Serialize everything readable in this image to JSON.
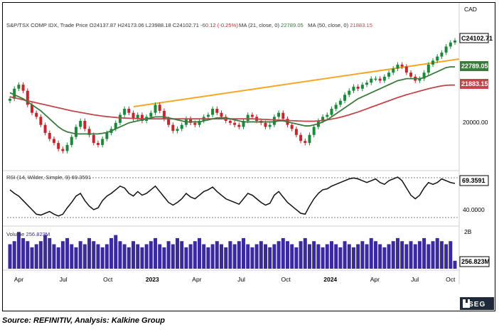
{
  "header": {
    "symbol": "S&P/TSX COMP IDX, Trade Price",
    "open": "O24137.87",
    "high": "H24173.06",
    "low": "L23988.18",
    "close": "C24102.71",
    "change": "-60.12 (-0.25%)",
    "ma21": "MA (21, close, 0)",
    "ma21_value": "22789.05",
    "ma50": "MA (50, close, 0)",
    "ma50_value": "21883.15",
    "currency": "CAD"
  },
  "rsi": {
    "label": "RSI (14, Wilder, Simple, 9)",
    "value": "69.3591",
    "axis_tick": "40.0000"
  },
  "volume": {
    "label": "Volume",
    "value_label": "256.823M",
    "axis_tick": "2B"
  },
  "footer": {
    "source": "Source: REFINITIV, Analysis: Kalkine Group",
    "brand": "LSEG"
  },
  "colors": {
    "up_candle": "#1a8a3a",
    "down_candle": "#c0282e",
    "ma21": "#3a7a3a",
    "ma50": "#c0474a",
    "trendline": "#f5a623",
    "volume": "#3a2a9e",
    "rsi_line": "#111111",
    "brand_bg": "#1e2a3a"
  },
  "chart_data": {
    "type": "candlestick",
    "title": "S&P/TSX COMP IDX, Trade Price",
    "x_tick_labels": [
      "Apr",
      "Jul",
      "Oct",
      "2023",
      "Apr",
      "Jul",
      "Oct",
      "2024",
      "Apr",
      "Jul",
      "Oct"
    ],
    "y_tick_labels": [
      "20000.00"
    ],
    "last_values": {
      "close": 24102.71,
      "ma21": 22789.05,
      "ma50": 21883.15
    },
    "price_series": {
      "name": "Close",
      "values": [
        21200,
        21700,
        21900,
        21600,
        20900,
        20500,
        20300,
        19900,
        19500,
        19200,
        19000,
        18700,
        18600,
        18900,
        19300,
        19800,
        20100,
        19700,
        19400,
        19000,
        18900,
        19200,
        19500,
        19700,
        20000,
        20400,
        20700,
        20500,
        20200,
        20400,
        20100,
        20300,
        20500,
        20900,
        20600,
        20200,
        19900,
        19600,
        19700,
        19900,
        20200,
        20000,
        19900,
        20100,
        20300,
        20400,
        20700,
        20500,
        20300,
        20100,
        20000,
        19900,
        19800,
        20100,
        20400,
        20300,
        20100,
        20000,
        19800,
        19900,
        20300,
        20500,
        20200,
        19900,
        19700,
        19400,
        19100,
        19000,
        19400,
        19800,
        20100,
        20300,
        20400,
        20700,
        20900,
        21100,
        21400,
        21600,
        21800,
        21700,
        21900,
        22000,
        22200,
        22200,
        22100,
        22300,
        22500,
        22700,
        22900,
        22800,
        22500,
        22300,
        22100,
        22200,
        22500,
        22900,
        23100,
        23300,
        23500,
        23800,
        24000,
        24100
      ]
    },
    "ma21": {
      "name": "MA (21, close, 0)",
      "values": [
        21500,
        21400,
        21300,
        21200,
        21050,
        20900,
        20750,
        20600,
        20400,
        20200,
        20000,
        19800,
        19650,
        19550,
        19500,
        19450,
        19450,
        19450,
        19450,
        19450,
        19450,
        19480,
        19520,
        19600,
        19700,
        19800,
        19900,
        20000,
        20050,
        20100,
        20150,
        20200,
        20250,
        20300,
        20300,
        20300,
        20250,
        20200,
        20150,
        20100,
        20050,
        20050,
        20050,
        20050,
        20100,
        20150,
        20200,
        20250,
        20250,
        20250,
        20200,
        20150,
        20100,
        20050,
        20050,
        20050,
        20050,
        20050,
        20050,
        20050,
        20050,
        20100,
        20100,
        20050,
        20000,
        19950,
        19900,
        19850,
        19850,
        19900,
        19950,
        20050,
        20150,
        20300,
        20450,
        20600,
        20750,
        20900,
        21050,
        21200,
        21300,
        21400,
        21500,
        21600,
        21700,
        21800,
        21900,
        22000,
        22100,
        22150,
        22200,
        22200,
        22200,
        22200,
        22250,
        22350,
        22450,
        22550,
        22650,
        22750,
        22790,
        22790
      ]
    },
    "ma50": {
      "name": "MA (50, close, 0)",
      "values": [
        21300,
        21250,
        21200,
        21150,
        21100,
        21050,
        21000,
        20950,
        20900,
        20850,
        20800,
        20750,
        20700,
        20650,
        20600,
        20560,
        20520,
        20480,
        20440,
        20400,
        20370,
        20340,
        20310,
        20290,
        20270,
        20250,
        20240,
        20230,
        20220,
        20210,
        20200,
        20200,
        20200,
        20200,
        20200,
        20200,
        20200,
        20200,
        20200,
        20200,
        20200,
        20200,
        20200,
        20200,
        20200,
        20200,
        20200,
        20200,
        20200,
        20200,
        20200,
        20200,
        20200,
        20200,
        20200,
        20200,
        20190,
        20180,
        20170,
        20160,
        20150,
        20140,
        20130,
        20120,
        20110,
        20100,
        20090,
        20080,
        20080,
        20080,
        20100,
        20120,
        20150,
        20190,
        20230,
        20280,
        20340,
        20400,
        20470,
        20540,
        20620,
        20700,
        20780,
        20860,
        20940,
        21020,
        21100,
        21180,
        21260,
        21330,
        21400,
        21460,
        21520,
        21580,
        21640,
        21700,
        21750,
        21800,
        21840,
        21870,
        21880,
        21883
      ]
    },
    "rsi_series": {
      "name": "RSI (14, Wilder, Simple, 9)",
      "values": [
        62,
        58,
        55,
        50,
        45,
        40,
        35,
        34,
        36,
        38,
        35,
        33,
        35,
        42,
        48,
        55,
        58,
        50,
        44,
        40,
        42,
        50,
        55,
        58,
        62,
        66,
        64,
        58,
        55,
        60,
        56,
        58,
        62,
        66,
        60,
        54,
        48,
        45,
        48,
        52,
        58,
        54,
        52,
        56,
        60,
        62,
        65,
        60,
        56,
        52,
        50,
        48,
        46,
        52,
        58,
        56,
        52,
        48,
        45,
        47,
        56,
        60,
        54,
        48,
        44,
        40,
        36,
        35,
        44,
        52,
        58,
        62,
        63,
        66,
        68,
        70,
        72,
        74,
        75,
        74,
        72,
        70,
        72,
        74,
        70,
        68,
        72,
        74,
        76,
        72,
        64,
        56,
        52,
        56,
        64,
        70,
        68,
        70,
        74,
        72,
        70,
        69
      ]
    },
    "volume_series": {
      "name": "Volume",
      "values": [
        0.8,
        0.9,
        1.2,
        1.0,
        0.9,
        0.7,
        0.8,
        0.9,
        1.1,
        1.0,
        0.8,
        0.7,
        0.9,
        1.0,
        0.8,
        0.7,
        0.9,
        0.8,
        1.0,
        0.9,
        0.8,
        0.7,
        0.8,
        1.0,
        1.1,
        0.9,
        0.8,
        0.7,
        0.9,
        0.8,
        0.7,
        0.8,
        0.9,
        1.0,
        0.8,
        0.7,
        0.9,
        0.8,
        1.0,
        0.9,
        0.7,
        0.8,
        0.9,
        1.0,
        0.8,
        0.7,
        0.8,
        0.9,
        0.8,
        0.7,
        0.9,
        0.8,
        0.9,
        1.0,
        0.8,
        0.7,
        0.8,
        0.9,
        0.8,
        0.7,
        0.8,
        0.9,
        1.0,
        0.9,
        0.8,
        0.7,
        0.9,
        1.0,
        0.8,
        0.9,
        0.8,
        0.7,
        0.8,
        0.9,
        0.8,
        0.7,
        0.9,
        0.8,
        0.7,
        0.8,
        0.9,
        0.8,
        1.0,
        0.9,
        0.8,
        0.7,
        0.8,
        0.9,
        1.0,
        0.9,
        0.8,
        0.9,
        0.8,
        0.9,
        1.0,
        0.8,
        0.9,
        1.0,
        0.9,
        0.8,
        0.9,
        0.26
      ]
    }
  }
}
